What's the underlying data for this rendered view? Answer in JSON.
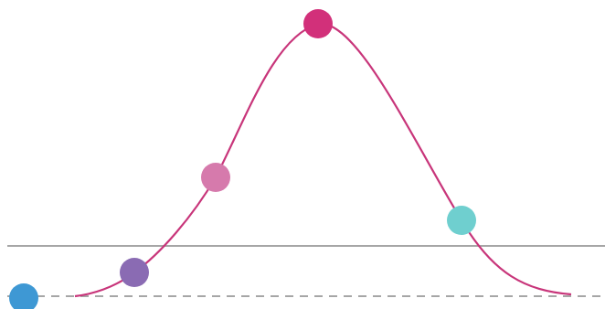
{
  "colors": {
    "background": "#ffffff",
    "curve": "#c8357a",
    "threshold_line": "#a6a6a6",
    "baseline": "#a6a6a6",
    "markers": [
      "#3e98d4",
      "#8a6bb3",
      "#d67aac",
      "#d2307a",
      "#6fcfcf"
    ]
  },
  "diagram": {
    "shape": "bell-curve",
    "threshold_line_style": "solid",
    "baseline_style": "dashed",
    "marker_count": 5
  }
}
